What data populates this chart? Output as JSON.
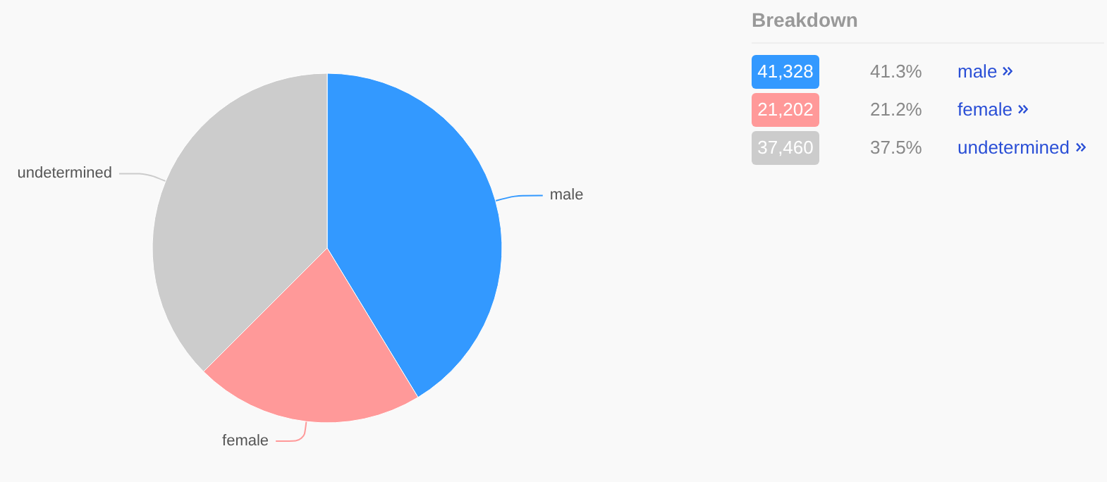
{
  "chart_data": {
    "type": "pie",
    "legend_title": "Breakdown",
    "categories": [
      "male",
      "female",
      "undetermined"
    ],
    "values": [
      41.3,
      21.2,
      37.5
    ],
    "colors": [
      "#3399ff",
      "#ff9999",
      "#cccccc"
    ],
    "annotations": [
      "41,328",
      "41.3%",
      "21,202",
      "21.2%",
      "37,460",
      "37.5%"
    ]
  }
}
